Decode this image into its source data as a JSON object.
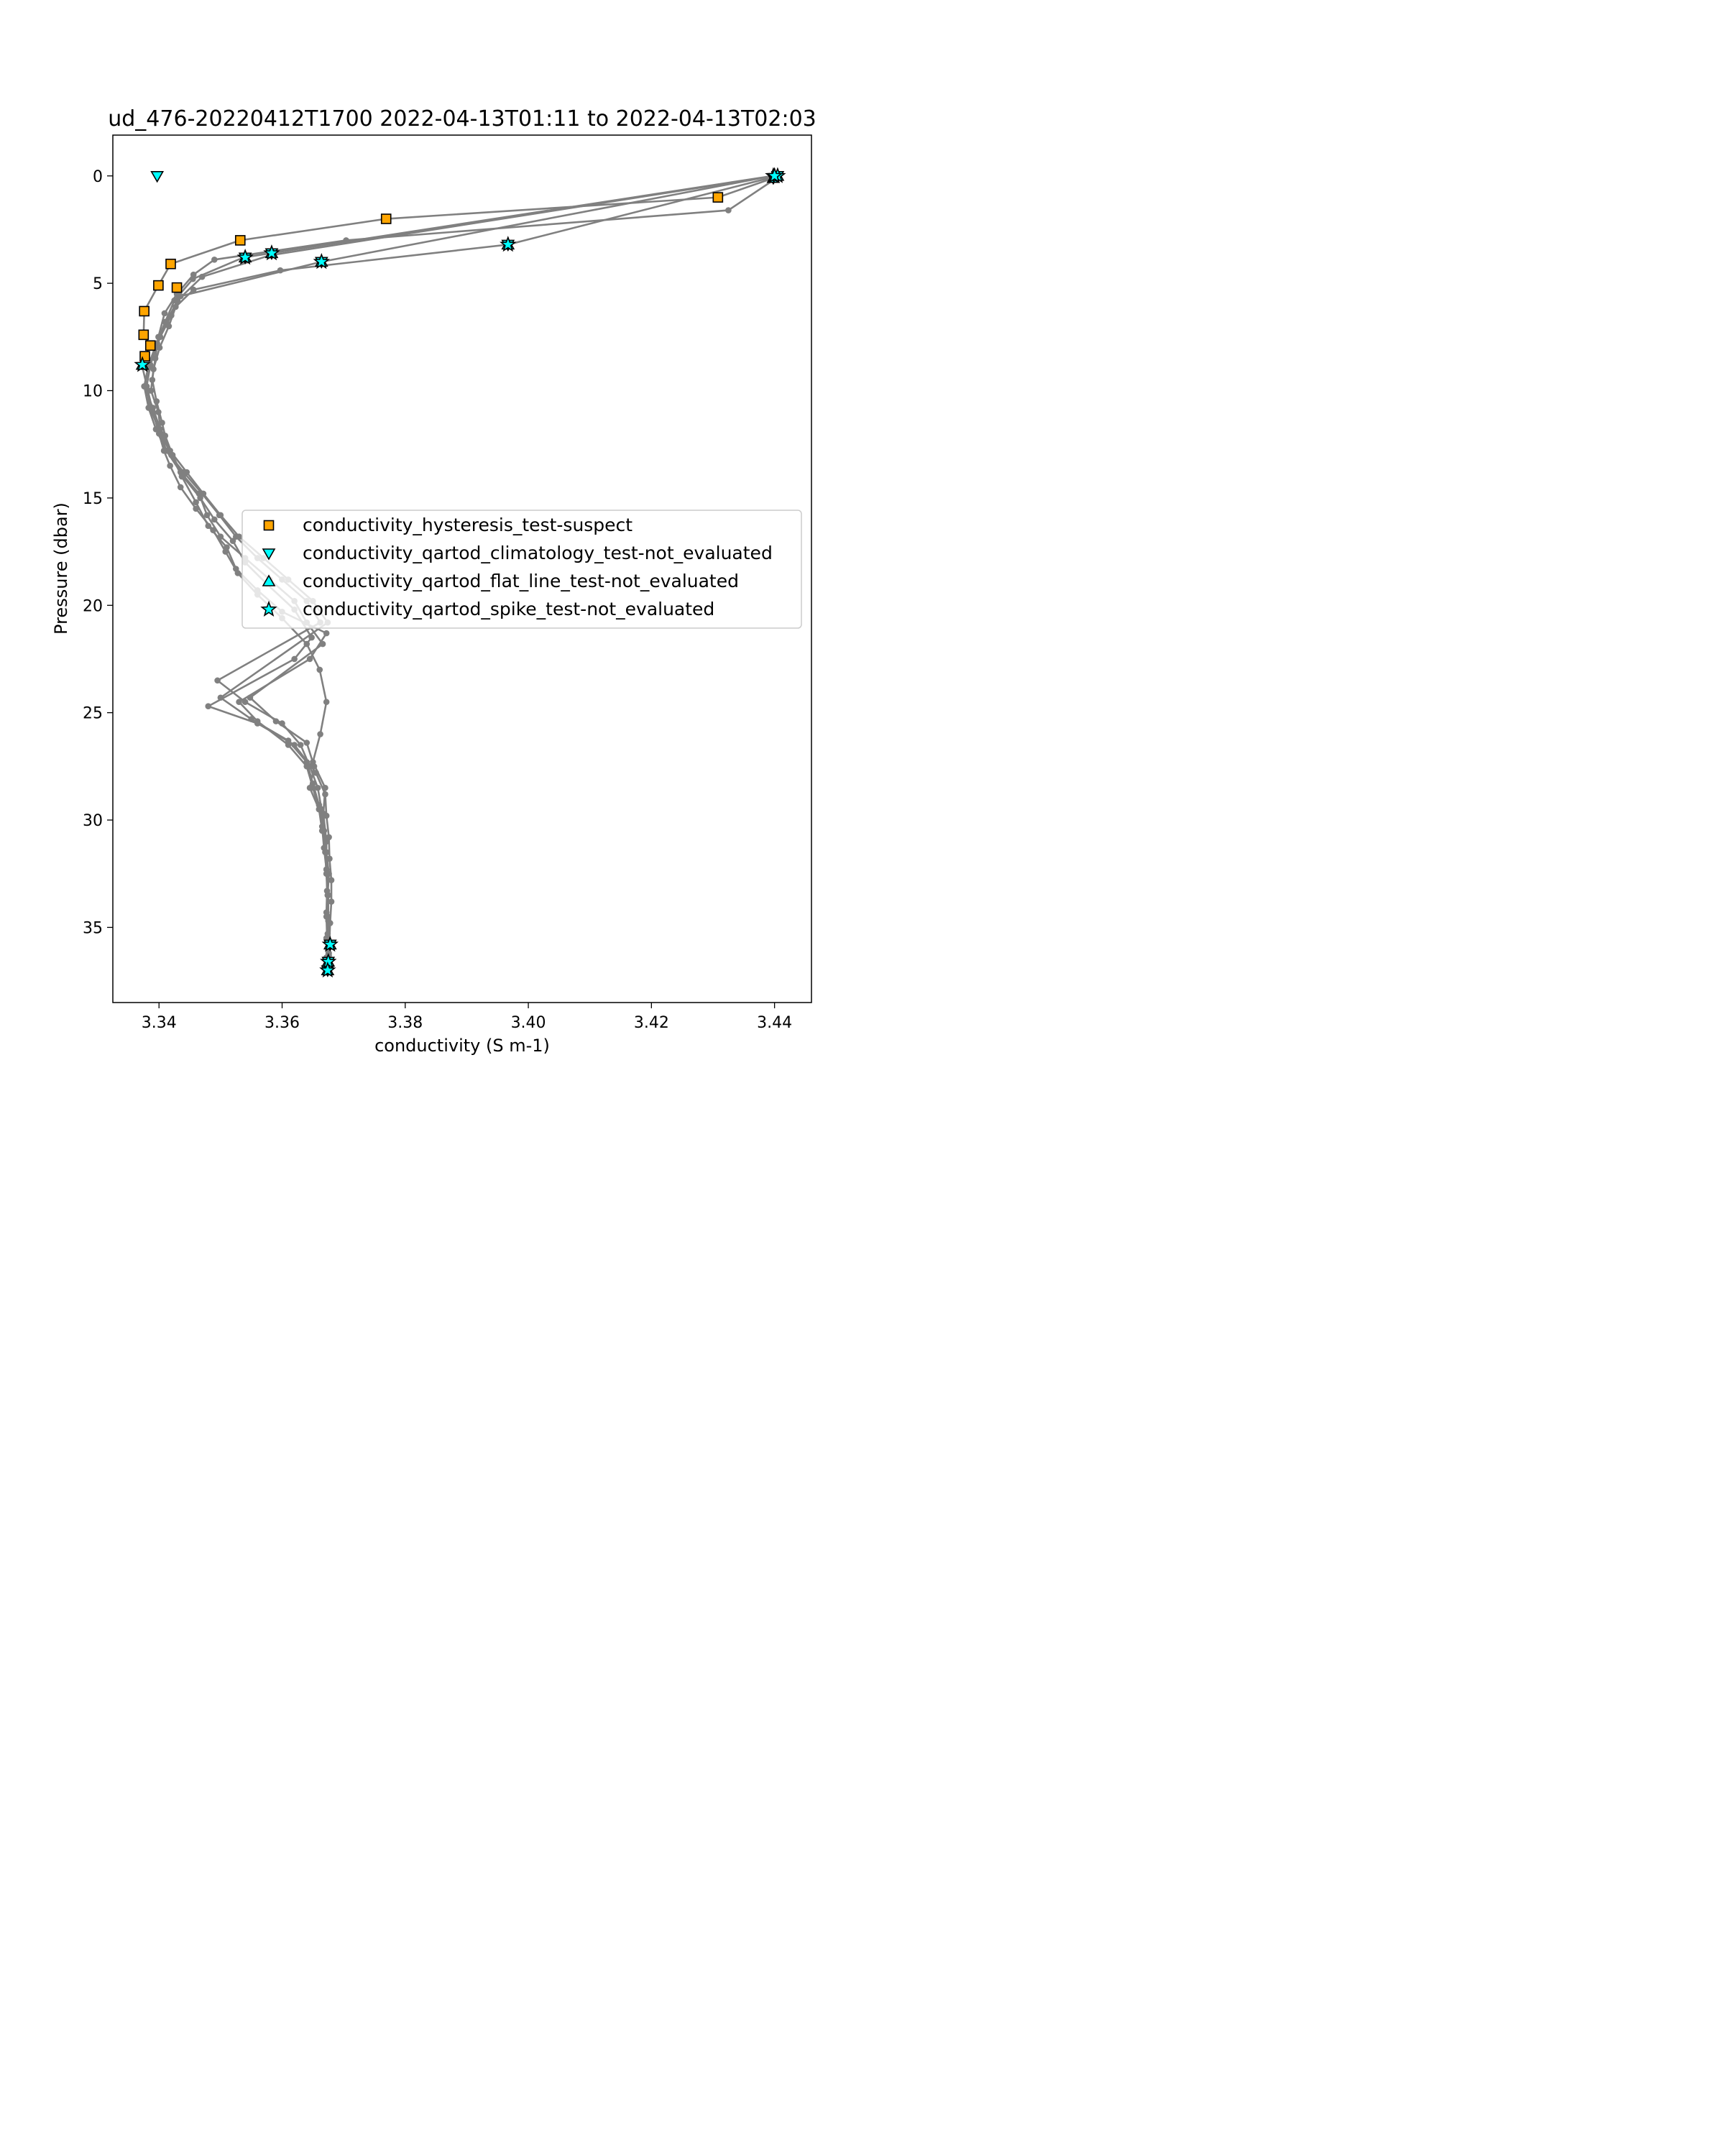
{
  "chart_data": {
    "type": "scatter",
    "title": "ud_476-20220412T1700 2022-04-13T01:11 to 2022-04-13T02:03",
    "xlabel": "conductivity (S m-1)",
    "ylabel": "Pressure (dbar)",
    "xlim": [
      3.3325,
      3.446
    ],
    "ylim": [
      38.5,
      -1.9
    ],
    "y_inverted": true,
    "x_ticks": [
      3.34,
      3.36,
      3.38,
      3.4,
      3.42,
      3.44
    ],
    "x_tick_labels": [
      "3.34",
      "3.36",
      "3.38",
      "3.40",
      "3.42",
      "3.44"
    ],
    "y_ticks": [
      0,
      5,
      10,
      15,
      20,
      25,
      30,
      35
    ],
    "y_tick_labels": [
      "0",
      "5",
      "10",
      "15",
      "20",
      "25",
      "30",
      "35"
    ],
    "grid": false,
    "legend_position": "center-right",
    "profile_color": "#808080",
    "profiles": [
      {
        "x": [
          3.4398,
          3.4308,
          3.3769,
          3.3532,
          3.3419,
          3.3399,
          3.3376,
          3.3375,
          3.3386,
          3.3377,
          3.3373,
          3.3382,
          3.339,
          3.34,
          3.3408,
          3.3418,
          3.3435,
          3.346,
          3.3488,
          3.3508,
          3.3528,
          3.356,
          3.36,
          3.364,
          3.3661,
          3.3672,
          3.3662,
          3.365,
          3.367,
          3.3667,
          3.3672,
          3.3672,
          3.3675,
          3.3675,
          3.3678
        ],
        "y": [
          0.1,
          1.0,
          2.0,
          3.0,
          4.1,
          5.1,
          6.3,
          7.4,
          7.9,
          8.4,
          8.9,
          10.0,
          11.0,
          12.0,
          12.8,
          13.5,
          14.5,
          15.5,
          16.5,
          17.5,
          18.5,
          19.5,
          20.6,
          21.8,
          23.0,
          24.5,
          26.0,
          27.3,
          28.5,
          29.7,
          31.0,
          32.3,
          33.5,
          34.7,
          35.9
        ]
      },
      {
        "x": [
          3.4398,
          3.4325,
          3.3704,
          3.349,
          3.3456,
          3.3429,
          3.3409,
          3.3399,
          3.3394,
          3.3389,
          3.3396,
          3.3405,
          3.341,
          3.3422,
          3.3439,
          3.3467,
          3.349,
          3.352,
          3.354,
          3.3575,
          3.362,
          3.3648,
          3.362,
          3.348,
          3.356,
          3.362,
          3.3655,
          3.367,
          3.3672,
          3.3676,
          3.3677,
          3.368,
          3.368,
          3.3678,
          3.3676
        ],
        "y": [
          0.2,
          1.6,
          3.0,
          3.9,
          4.6,
          5.5,
          6.4,
          7.5,
          8.5,
          9.5,
          10.5,
          11.5,
          12.1,
          13.0,
          14.0,
          15.0,
          16.0,
          17.0,
          18.0,
          19.0,
          20.2,
          21.5,
          22.5,
          24.7,
          25.5,
          26.5,
          27.8,
          28.8,
          29.8,
          30.8,
          31.8,
          32.8,
          33.8,
          34.8,
          36.3
        ]
      },
      {
        "x": [
          3.4405,
          3.3967,
          3.3597,
          3.3456,
          3.3427,
          3.3416,
          3.3401,
          3.3391,
          3.3387,
          3.3399,
          3.3403,
          3.342,
          3.3437,
          3.346,
          3.348,
          3.351,
          3.3525,
          3.356,
          3.36,
          3.3672,
          3.3645,
          3.353,
          3.356,
          3.361,
          3.364,
          3.365,
          3.366,
          3.3668,
          3.367,
          3.3672,
          3.3675,
          3.3674,
          3.3672,
          3.3672,
          3.3674
        ],
        "y": [
          0.0,
          3.2,
          4.4,
          5.3,
          6.1,
          7.0,
          8.0,
          9.0,
          10.0,
          11.0,
          12.0,
          13.0,
          14.0,
          15.2,
          16.3,
          17.3,
          18.3,
          19.3,
          20.3,
          21.3,
          22.5,
          24.5,
          25.4,
          26.5,
          27.5,
          28.5,
          29.5,
          30.5,
          31.5,
          32.5,
          33.5,
          34.5,
          35.5,
          36.4,
          37.0
        ]
      },
      {
        "x": [
          3.4397,
          3.3664,
          3.3435,
          3.342,
          3.3402,
          3.3386,
          3.338,
          3.3385,
          3.34,
          3.3412,
          3.3435,
          3.3465,
          3.3478,
          3.35,
          3.354,
          3.358,
          3.362,
          3.364,
          3.3666,
          3.3548,
          3.359,
          3.364,
          3.3652,
          3.3645,
          3.366,
          3.3665,
          3.3672,
          3.3676,
          3.3674,
          3.3672,
          3.3673,
          3.3675
        ],
        "y": [
          0.0,
          4.0,
          5.6,
          6.5,
          7.5,
          8.8,
          9.8,
          10.8,
          11.8,
          12.8,
          13.8,
          14.8,
          15.8,
          16.8,
          17.8,
          18.8,
          19.8,
          20.8,
          21.8,
          24.3,
          25.4,
          26.4,
          27.5,
          28.5,
          29.5,
          30.5,
          31.5,
          32.5,
          33.5,
          34.5,
          35.5,
          36.6
        ]
      },
      {
        "x": [
          3.44,
          3.358,
          3.347,
          3.343,
          3.3412,
          3.3397,
          3.3385,
          3.3376,
          3.339,
          3.3402,
          3.3418,
          3.3445,
          3.3472,
          3.35,
          3.353,
          3.357,
          3.361,
          3.365,
          3.3674,
          3.35,
          3.355,
          3.361,
          3.364,
          3.365,
          3.366,
          3.3665,
          3.3668,
          3.3672,
          3.3673,
          3.3672,
          3.3674,
          3.3676,
          3.3675
        ],
        "y": [
          0.0,
          3.7,
          4.7,
          5.8,
          6.8,
          7.8,
          8.8,
          9.8,
          10.8,
          11.8,
          12.8,
          13.8,
          14.8,
          15.8,
          16.8,
          17.8,
          18.8,
          19.8,
          20.8,
          24.3,
          25.3,
          26.3,
          27.3,
          28.3,
          29.3,
          30.3,
          31.3,
          32.3,
          33.3,
          34.3,
          35.3,
          36.2,
          36.8
        ]
      },
      {
        "x": [
          3.4397,
          3.3537,
          3.3455,
          3.3425,
          3.341,
          3.3396,
          3.3383,
          3.3376,
          3.3383,
          3.3395,
          3.3412,
          3.344,
          3.347,
          3.3498,
          3.3525,
          3.356,
          3.36,
          3.364,
          3.3662,
          3.3495,
          3.354,
          3.36,
          3.363,
          3.3645,
          3.3658,
          3.3664,
          3.3668,
          3.3672,
          3.3672,
          3.3674,
          3.3675
        ],
        "y": [
          0.0,
          3.8,
          4.8,
          5.8,
          6.8,
          7.8,
          8.8,
          9.8,
          10.8,
          11.8,
          12.8,
          13.8,
          14.8,
          15.8,
          16.8,
          17.8,
          18.8,
          19.8,
          20.8,
          23.5,
          24.5,
          25.5,
          26.5,
          27.5,
          28.5,
          29.5,
          30.5,
          31.5,
          32.5,
          33.5,
          34.5
        ]
      }
    ],
    "series": [
      {
        "name": "conductivity_hysteresis_test-suspect",
        "marker": "square",
        "color": "#FFA500",
        "x": [
          3.4308,
          3.3769,
          3.3532,
          3.3419,
          3.3399,
          3.3429,
          3.3376,
          3.3375,
          3.3386,
          3.3377
        ],
        "y": [
          1.0,
          2.0,
          3.0,
          4.1,
          5.1,
          5.2,
          6.3,
          7.4,
          7.9,
          8.4
        ]
      },
      {
        "name": "conductivity_qartod_climatology_test-not_evaluated",
        "marker": "triangle-down",
        "color": "#00FFFF",
        "x": [
          3.4398,
          3.4405,
          3.3397,
          3.3583,
          3.3967,
          3.3664,
          3.354,
          3.3678,
          3.3675,
          3.3674
        ],
        "y": [
          0.1,
          0.0,
          0.0,
          3.6,
          3.2,
          4.0,
          3.8,
          35.8,
          36.6,
          37.0
        ]
      },
      {
        "name": "conductivity_qartod_flat_line_test-not_evaluated",
        "marker": "triangle-up",
        "color": "#00FFFF",
        "x": [
          3.4398,
          3.4405,
          3.3583,
          3.3967,
          3.3664,
          3.354,
          3.3373,
          3.3678,
          3.3675,
          3.3674
        ],
        "y": [
          0.1,
          0.0,
          3.6,
          3.2,
          4.0,
          3.8,
          8.8,
          35.8,
          36.6,
          37.0
        ]
      },
      {
        "name": "conductivity_qartod_spike_test-not_evaluated",
        "marker": "star",
        "color": "#00FFFF",
        "x": [
          3.4398,
          3.4405,
          3.44,
          3.3583,
          3.3967,
          3.3664,
          3.354,
          3.3373,
          3.3678,
          3.3675,
          3.3674
        ],
        "y": [
          0.0,
          0.0,
          0.0,
          3.6,
          3.2,
          4.0,
          3.8,
          8.8,
          35.8,
          36.6,
          37.0
        ]
      }
    ]
  }
}
